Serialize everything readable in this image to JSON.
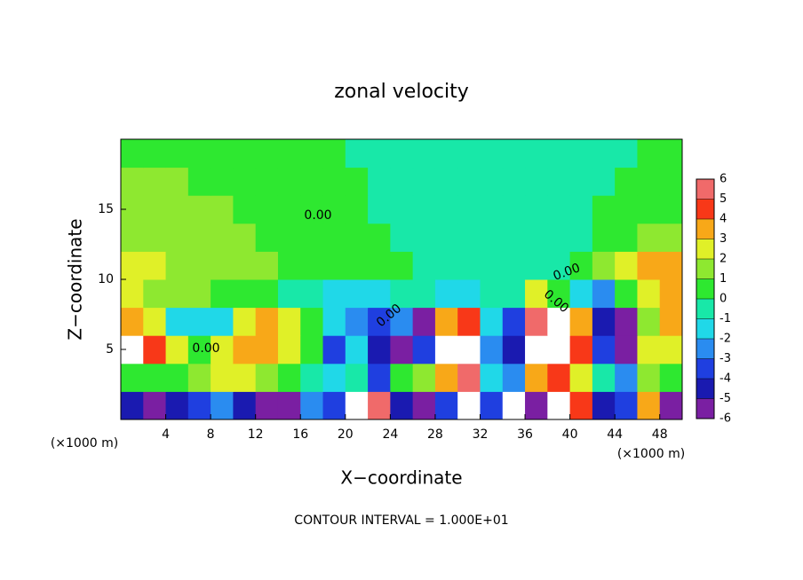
{
  "chart_data": {
    "type": "heatmap",
    "title": "zonal velocity",
    "xlabel": "X−coordinate",
    "ylabel": "Z−coordinate",
    "xunit": "(×1000 m)",
    "yunit": "(×1000 m)",
    "footer": "CONTOUR INTERVAL = 1.000E+01",
    "contour_labels": [
      "0.00",
      "0.00",
      "0.00",
      "0.00",
      "0.00"
    ],
    "xlim": [
      0,
      50
    ],
    "ylim": [
      0,
      20
    ],
    "xticks": [
      4,
      8,
      12,
      16,
      20,
      24,
      28,
      32,
      36,
      40,
      44,
      48
    ],
    "yticks": [
      5,
      10,
      15
    ],
    "colorbar": {
      "levels": [
        -6,
        -5,
        -4,
        -3,
        -2,
        -1,
        0,
        1,
        2,
        3,
        4,
        5,
        6
      ],
      "colors": [
        "#7a1fa2",
        "#1a1ab0",
        "#1f3fe0",
        "#2a8cf0",
        "#20d8e8",
        "#18e8a8",
        "#2ee830",
        "#8ee830",
        "#e0f028",
        "#f8a818",
        "#f83818",
        "#f06a6a"
      ]
    },
    "z": [
      [
        -4,
        -5,
        -4,
        -3,
        -2,
        -4,
        -6,
        -5,
        -2,
        -3,
        7,
        6,
        -4,
        -5,
        -3,
        7,
        -3,
        7,
        -6,
        7,
        5,
        -4,
        -3,
        4,
        -6
      ],
      [
        1,
        0.5,
        1,
        2,
        3,
        3,
        2,
        1,
        0,
        -1,
        0,
        -3,
        1,
        2,
        4,
        6,
        -1,
        -2,
        4,
        5,
        3,
        0,
        -2,
        2,
        1
      ],
      [
        7,
        5,
        3,
        1,
        3,
        4,
        4,
        3,
        1,
        -3,
        -1,
        -4,
        -5,
        -3,
        7,
        8,
        -2,
        -4,
        7,
        8,
        5,
        -3,
        -6,
        3,
        3
      ],
      [
        4,
        3,
        -1.5,
        -1.5,
        -1,
        3,
        4,
        3,
        0.5,
        -1,
        -2,
        -3,
        -2,
        -5,
        4,
        5,
        -1,
        -3,
        6,
        7,
        4,
        -4,
        -5,
        2,
        4
      ],
      [
        3,
        2,
        1.5,
        1.2,
        1,
        0.8,
        0.5,
        0,
        -0.5,
        -1,
        -1.5,
        -1,
        0,
        -0.5,
        -1.5,
        -1,
        0,
        -0.8,
        3,
        1,
        -1,
        -2,
        1,
        3,
        4
      ],
      [
        2.5,
        2.2,
        2,
        2,
        1.8,
        1.5,
        1.2,
        0.9,
        0.7,
        0.6,
        0.5,
        0.3,
        0.2,
        0,
        -0.4,
        -0.7,
        -0.8,
        -0.6,
        -0.3,
        0,
        0.5,
        2,
        3,
        4,
        3.5
      ],
      [
        2,
        1.8,
        1.7,
        1.8,
        1.6,
        1.3,
        1,
        0.8,
        0.6,
        0.5,
        0.4,
        0.3,
        0,
        -0.3,
        -0.6,
        -0.8,
        -0.8,
        -0.7,
        -0.5,
        -0.3,
        0,
        0.4,
        1,
        1.8,
        2
      ],
      [
        1.5,
        1.5,
        1.4,
        1.3,
        1.2,
        1,
        0.9,
        0.7,
        0.5,
        0.3,
        0.2,
        -0.1,
        -0.4,
        -0.6,
        -0.8,
        -0.9,
        -0.9,
        -0.7,
        -0.6,
        -0.4,
        -0.2,
        0.1,
        0.4,
        0.8,
        1
      ],
      [
        1.2,
        1.2,
        1.1,
        1,
        0.9,
        0.7,
        0.6,
        0.4,
        0.3,
        0.2,
        0.1,
        -0.2,
        -0.5,
        -0.6,
        -0.7,
        -0.8,
        -0.8,
        -0.6,
        -0.5,
        -0.3,
        -0.2,
        0,
        0.2,
        0.4,
        0.5
      ],
      [
        1,
        1,
        1,
        0.8,
        0.6,
        0.5,
        0.4,
        0.3,
        0.2,
        0.1,
        0,
        -0.2,
        -0.4,
        -0.5,
        -0.6,
        -0.6,
        -0.5,
        -0.5,
        -0.4,
        -0.3,
        -0.2,
        -0.1,
        0,
        0.2,
        0.3
      ]
    ]
  }
}
